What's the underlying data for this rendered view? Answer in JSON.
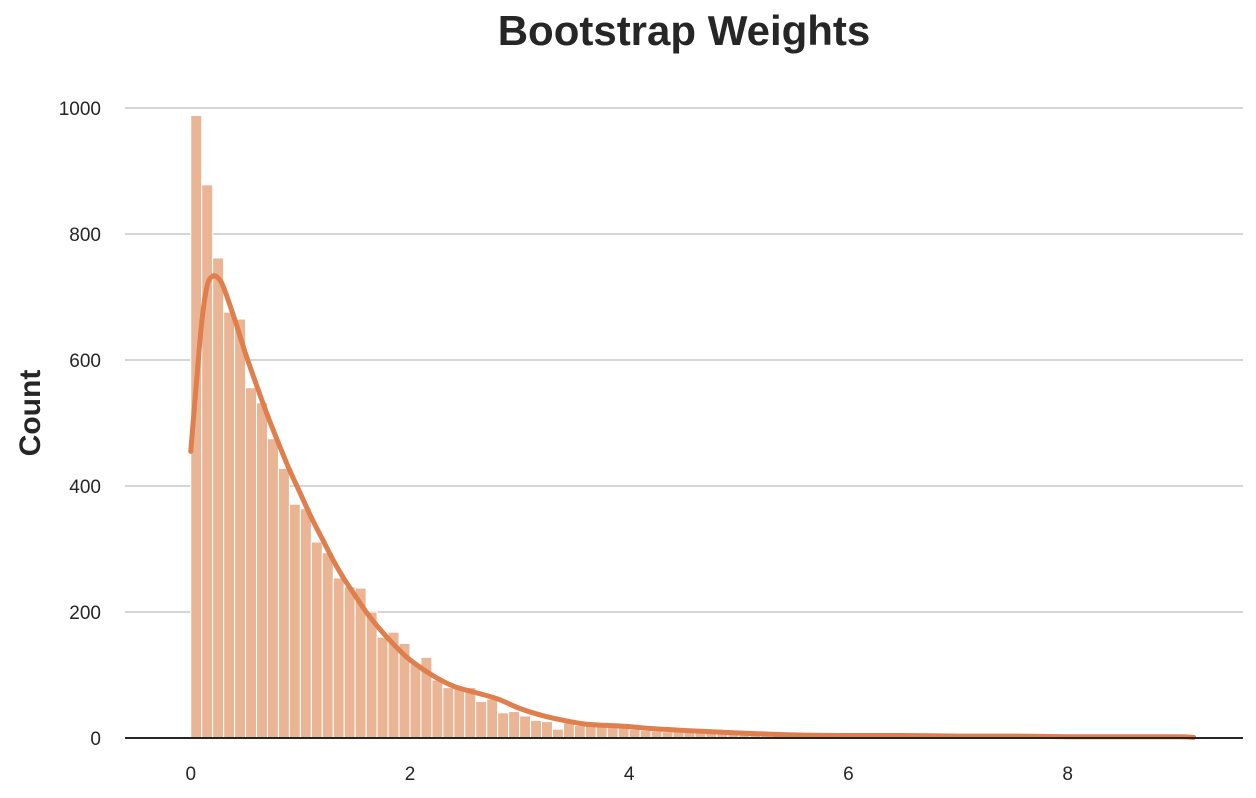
{
  "chart_data": {
    "type": "bar",
    "title": "Bootstrap Weights",
    "xlabel": "",
    "ylabel": "Count",
    "xlim": [
      -0.6,
      9.6
    ],
    "ylim": [
      0,
      1000
    ],
    "xticks": [
      0,
      2,
      4,
      6,
      8
    ],
    "yticks": [
      0,
      200,
      400,
      600,
      800,
      1000
    ],
    "grid": "y",
    "bin_start": 0.0,
    "bin_width": 0.1,
    "counts": [
      988,
      878,
      762,
      676,
      665,
      556,
      532,
      475,
      428,
      371,
      364,
      311,
      294,
      254,
      240,
      238,
      200,
      160,
      168,
      150,
      118,
      128,
      92,
      80,
      78,
      80,
      58,
      62,
      40,
      42,
      35,
      28,
      26,
      14,
      24,
      20,
      22,
      18,
      18,
      16,
      14,
      12,
      11,
      10,
      10,
      9,
      9,
      8,
      7,
      7,
      6,
      6,
      5,
      5,
      5,
      4,
      4,
      4,
      3,
      3,
      3,
      3,
      3,
      2,
      2,
      2,
      2,
      2,
      2,
      2,
      2,
      2,
      2,
      1,
      1,
      1,
      1,
      1,
      1,
      1,
      1,
      1,
      1,
      1,
      1,
      1,
      1,
      1,
      1,
      1,
      1,
      1
    ],
    "kde": {
      "x": [
        0.0,
        0.05,
        0.1,
        0.15,
        0.2,
        0.25,
        0.3,
        0.4,
        0.5,
        0.6,
        0.7,
        0.8,
        0.9,
        1.0,
        1.1,
        1.2,
        1.3,
        1.4,
        1.5,
        1.6,
        1.7,
        1.8,
        1.9,
        2.0,
        2.2,
        2.4,
        2.6,
        2.8,
        3.0,
        3.2,
        3.4,
        3.6,
        3.8,
        4.0,
        4.2,
        4.5,
        5.0,
        5.5,
        6.0,
        6.5,
        7.0,
        7.5,
        8.0,
        8.5,
        9.0,
        9.15
      ],
      "y": [
        455,
        560,
        660,
        718,
        733,
        730,
        715,
        665,
        610,
        560,
        512,
        468,
        426,
        388,
        350,
        316,
        282,
        252,
        226,
        200,
        178,
        158,
        140,
        124,
        100,
        82,
        72,
        62,
        47,
        36,
        28,
        22,
        20,
        18,
        15,
        12,
        8,
        5,
        4,
        4,
        3,
        3,
        2,
        2,
        2,
        1
      ]
    },
    "colors": {
      "bar": "#eab595",
      "kde": "#df7f4d",
      "text": "#262626"
    }
  }
}
